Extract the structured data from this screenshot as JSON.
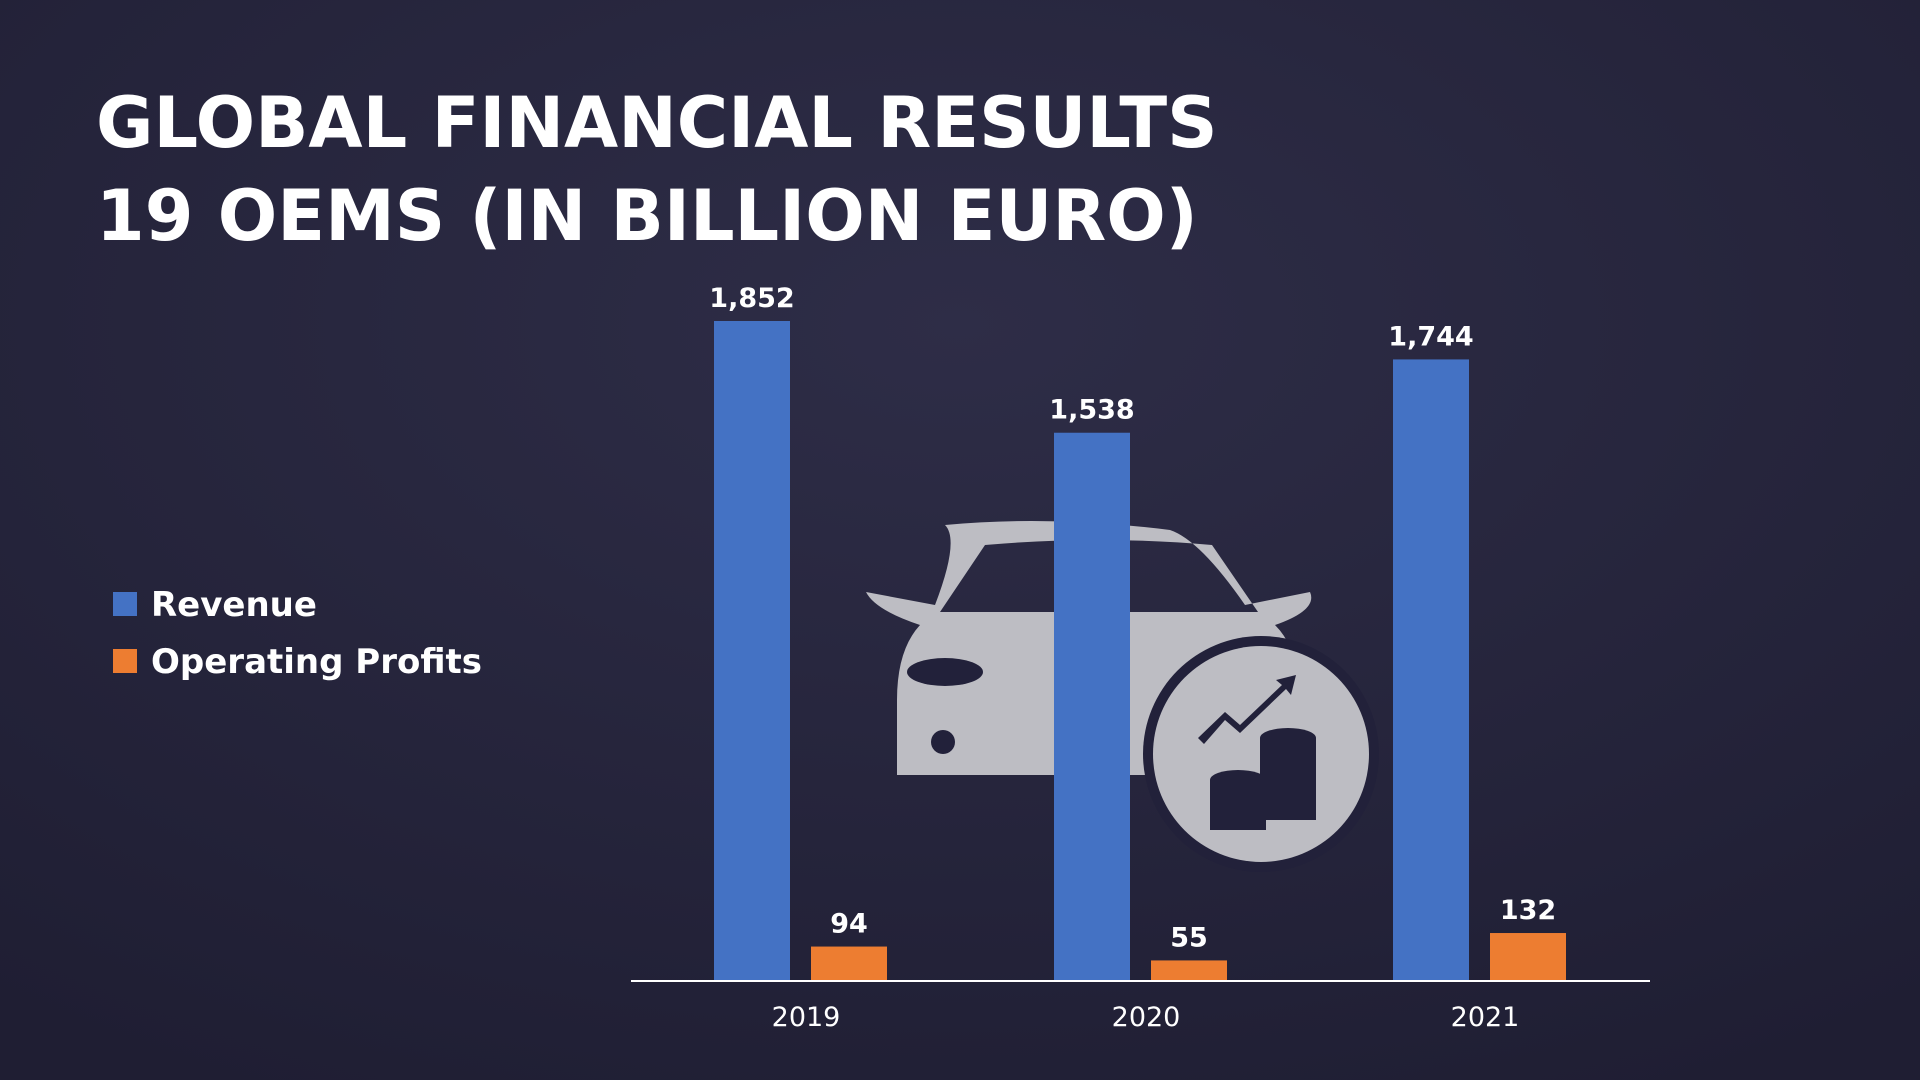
{
  "chart_data": {
    "type": "bar",
    "title": "GLOBAL FINANCIAL RESULTS",
    "subtitle": "19 OEMS (IN BILLION EURO)",
    "categories": [
      "2019",
      "2020",
      "2021"
    ],
    "series": [
      {
        "name": "Revenue",
        "color": "#4472c4",
        "values": [
          1852,
          1538,
          1744
        ],
        "value_labels": [
          "1,852",
          "1,538",
          "1,744"
        ]
      },
      {
        "name": "Operating Profits",
        "color": "#ed7d31",
        "values": [
          94,
          55,
          132
        ],
        "value_labels": [
          "94",
          "55",
          "132"
        ]
      }
    ]
  }
}
